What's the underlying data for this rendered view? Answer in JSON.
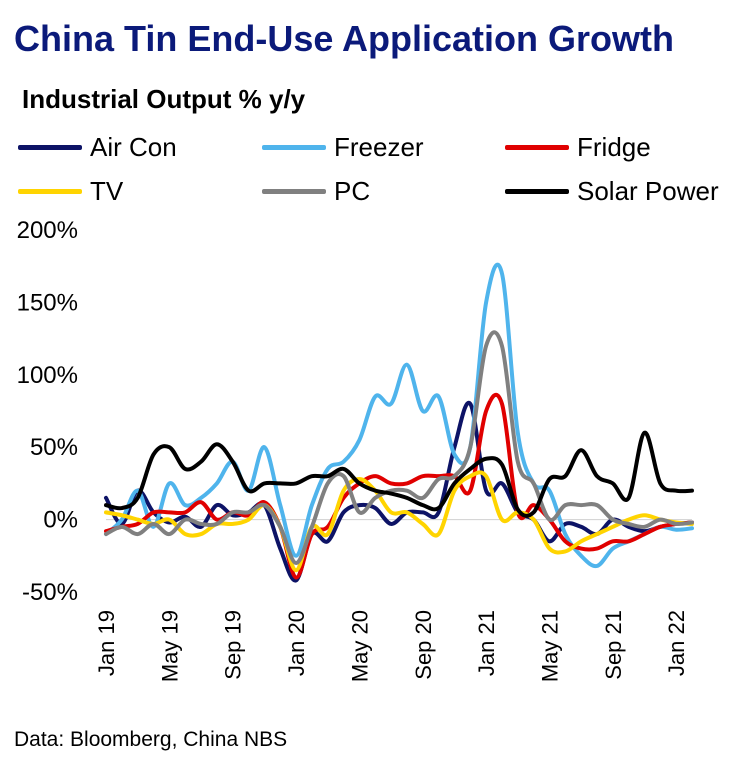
{
  "chart_data": {
    "type": "line",
    "title": "China Tin End-Use Application Growth",
    "subtitle": "Industrial Output % y/y",
    "x_tick_labels": [
      "Jan 19",
      "May 19",
      "Sep 19",
      "Jan 20",
      "May 20",
      "Sep 20",
      "Jan 21",
      "May 21",
      "Sep 21",
      "Jan 22"
    ],
    "x": [
      "Jan 19",
      "Feb 19",
      "Mar 19",
      "Apr 19",
      "May 19",
      "Jun 19",
      "Jul 19",
      "Aug 19",
      "Sep 19",
      "Oct 19",
      "Nov 19",
      "Dec 19",
      "Jan 20",
      "Feb 20",
      "Mar 20",
      "Apr 20",
      "May 20",
      "Jun 20",
      "Jul 20",
      "Aug 20",
      "Sep 20",
      "Oct 20",
      "Nov 20",
      "Dec 20",
      "Jan 21",
      "Feb 21",
      "Mar 21",
      "Apr 21",
      "May 21",
      "Jun 21",
      "Jul 21",
      "Aug 21",
      "Sep 21",
      "Oct 21",
      "Nov 21",
      "Dec 21",
      "Jan 22",
      "Feb 22"
    ],
    "ylim": [
      -50,
      200
    ],
    "y_ticks": [
      -50,
      0,
      50,
      100,
      150,
      200
    ],
    "y_tick_format": "percent",
    "grid": false,
    "legend_position": "top",
    "series": [
      {
        "name": "Air Con",
        "color": "#0d1366",
        "values": [
          15,
          -3,
          20,
          5,
          -2,
          2,
          -5,
          10,
          3,
          5,
          10,
          -20,
          -42,
          -10,
          -15,
          5,
          10,
          8,
          -3,
          5,
          5,
          5,
          50,
          80,
          20,
          25,
          5,
          0,
          -15,
          -3,
          -5,
          -10,
          0,
          -5,
          -8,
          -5,
          -3,
          -2
        ]
      },
      {
        "name": "Freezer",
        "color": "#4fb4ec",
        "values": [
          -10,
          0,
          20,
          -5,
          25,
          10,
          15,
          25,
          40,
          20,
          50,
          10,
          -25,
          10,
          35,
          40,
          55,
          85,
          80,
          107,
          75,
          85,
          45,
          50,
          150,
          170,
          60,
          25,
          20,
          -10,
          -25,
          -32,
          -20,
          -15,
          -10,
          -5,
          -7,
          -6
        ]
      },
      {
        "name": "Fridge",
        "color": "#e00000",
        "values": [
          -8,
          -5,
          -3,
          5,
          5,
          5,
          12,
          0,
          5,
          3,
          12,
          -5,
          -40,
          -10,
          -5,
          15,
          25,
          30,
          25,
          25,
          30,
          30,
          30,
          20,
          75,
          80,
          5,
          10,
          0,
          -15,
          -20,
          -20,
          -15,
          -15,
          -10,
          -5,
          -3,
          -2
        ]
      },
      {
        "name": "TV",
        "color": "#ffd400",
        "values": [
          5,
          3,
          0,
          -3,
          0,
          -10,
          -10,
          -3,
          -3,
          0,
          10,
          -5,
          -35,
          -5,
          -10,
          20,
          28,
          20,
          5,
          5,
          -3,
          -10,
          20,
          30,
          30,
          0,
          5,
          0,
          -20,
          -22,
          -15,
          -10,
          -5,
          0,
          3,
          0,
          -2,
          -3
        ]
      },
      {
        "name": "PC",
        "color": "#808080",
        "values": [
          -10,
          -5,
          -10,
          -3,
          -10,
          0,
          -3,
          -3,
          5,
          5,
          10,
          -5,
          -30,
          -5,
          25,
          30,
          5,
          15,
          20,
          20,
          15,
          28,
          30,
          50,
          120,
          120,
          40,
          25,
          0,
          10,
          10,
          10,
          0,
          -3,
          -5,
          0,
          -3,
          -2
        ]
      },
      {
        "name": "Solar Power",
        "color": "#000000",
        "values": [
          10,
          8,
          15,
          45,
          50,
          35,
          40,
          52,
          40,
          20,
          25,
          25,
          25,
          30,
          30,
          35,
          25,
          20,
          18,
          15,
          10,
          8,
          25,
          35,
          42,
          38,
          7,
          5,
          28,
          30,
          48,
          30,
          25,
          15,
          60,
          25,
          20,
          20
        ]
      }
    ]
  },
  "source": "Data: Bloomberg, China NBS"
}
